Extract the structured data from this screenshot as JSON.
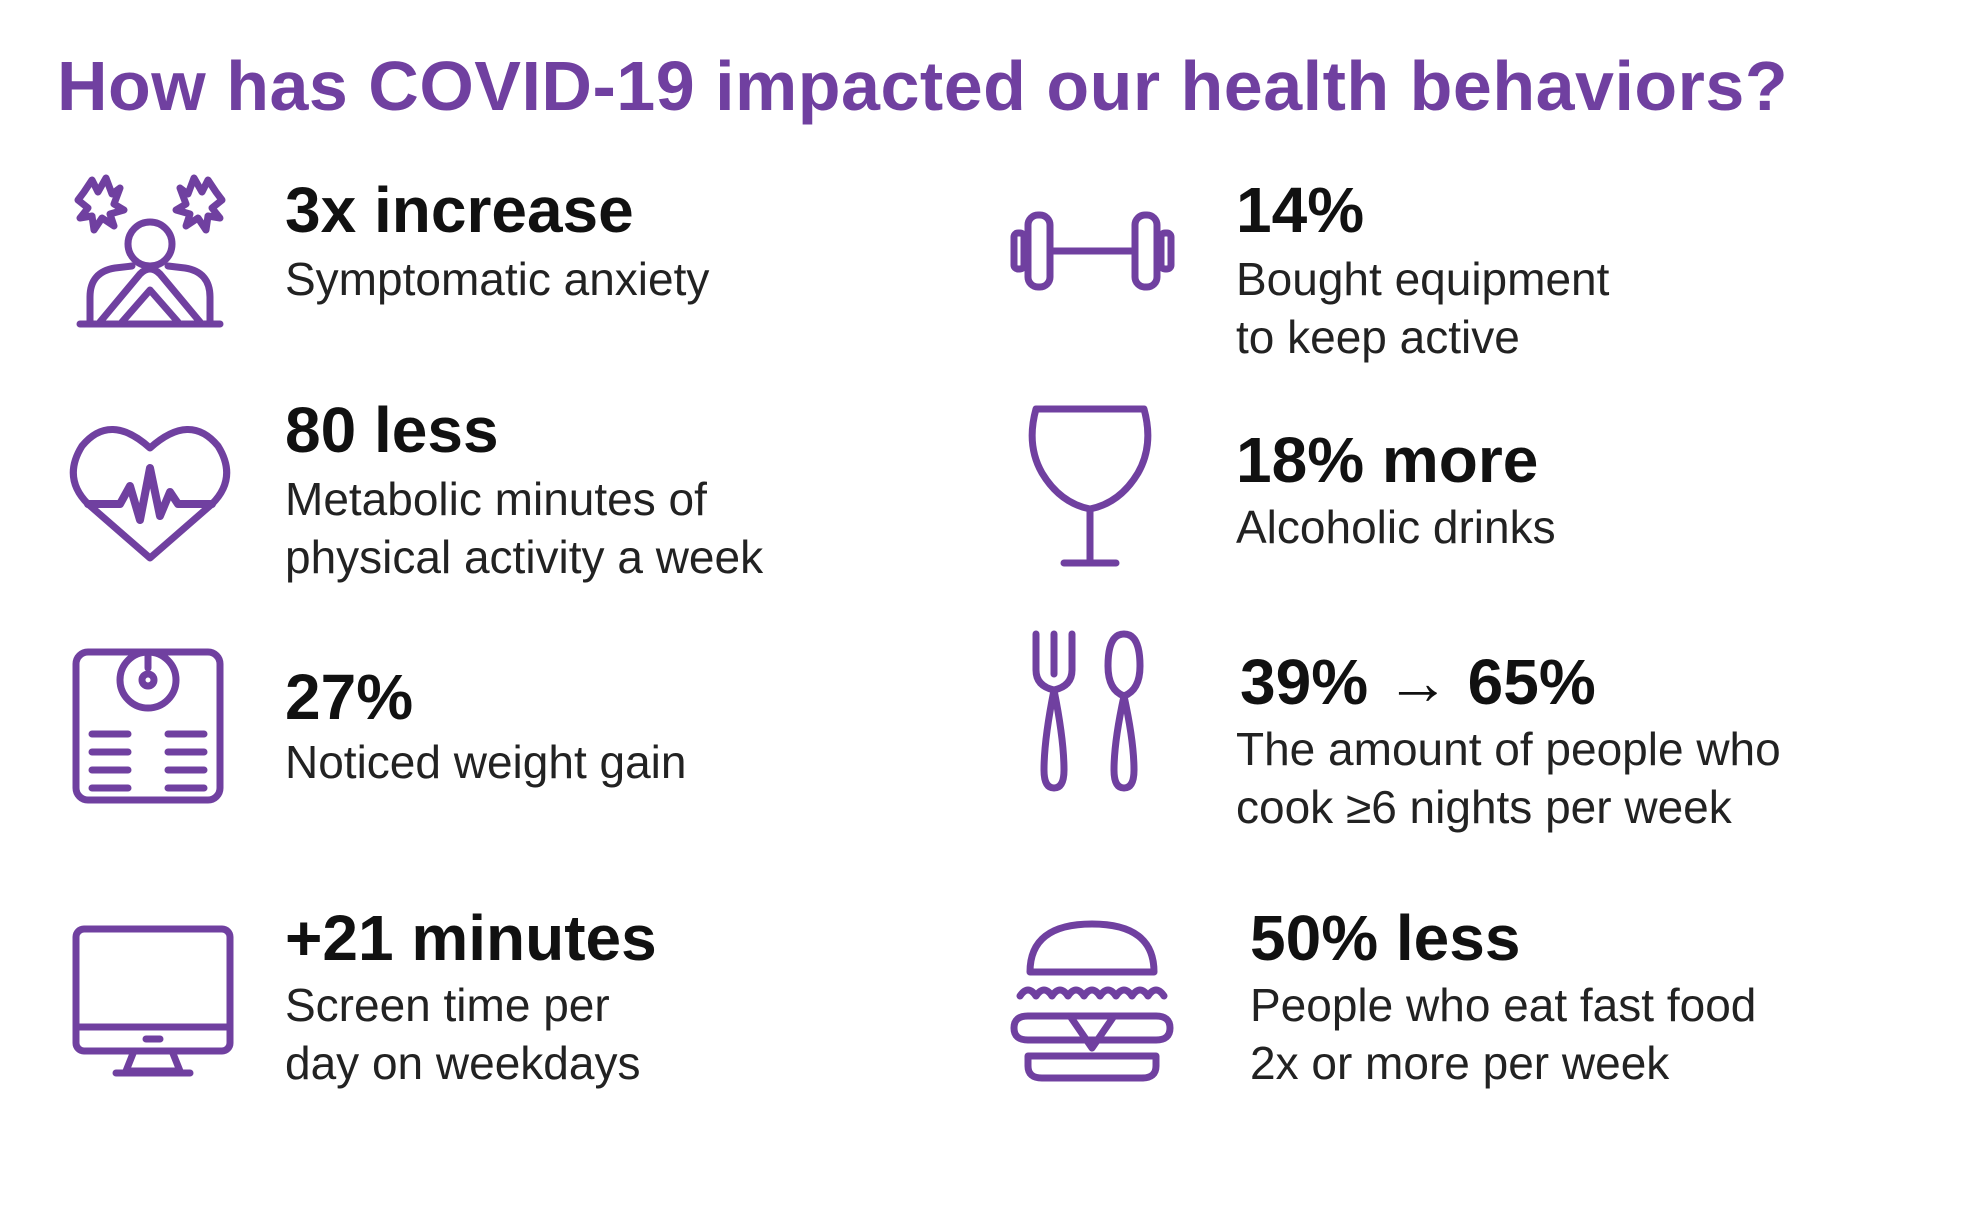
{
  "title": "How has COVID-19 impacted our health behaviors?",
  "accent_color": "#7040A0",
  "items": [
    {
      "icon": "anxiety-icon",
      "stat": "3x increase",
      "desc_lines": [
        "Symptomatic anxiety"
      ]
    },
    {
      "icon": "heart-rate-icon",
      "stat": "80 less",
      "desc_lines": [
        "Metabolic minutes of",
        "physical activity a week"
      ]
    },
    {
      "icon": "scale-icon",
      "stat": "27%",
      "desc_lines": [
        "Noticed weight gain"
      ]
    },
    {
      "icon": "monitor-icon",
      "stat": "+21 minutes",
      "desc_lines": [
        "Screen time per",
        "day on weekdays"
      ]
    },
    {
      "icon": "dumbbell-icon",
      "stat": "14%",
      "desc_lines": [
        "Bought equipment",
        "to keep active"
      ]
    },
    {
      "icon": "wine-glass-icon",
      "stat": "18% more",
      "desc_lines": [
        "Alcoholic drinks"
      ]
    },
    {
      "icon": "fork-spoon-icon",
      "stat": "39% → 65%",
      "desc_lines": [
        "The amount of people who",
        "cook ≥6 nights per week"
      ]
    },
    {
      "icon": "burger-icon",
      "stat": "50% less",
      "desc_lines": [
        "People who eat fast food",
        "2x or more per week"
      ]
    }
  ]
}
